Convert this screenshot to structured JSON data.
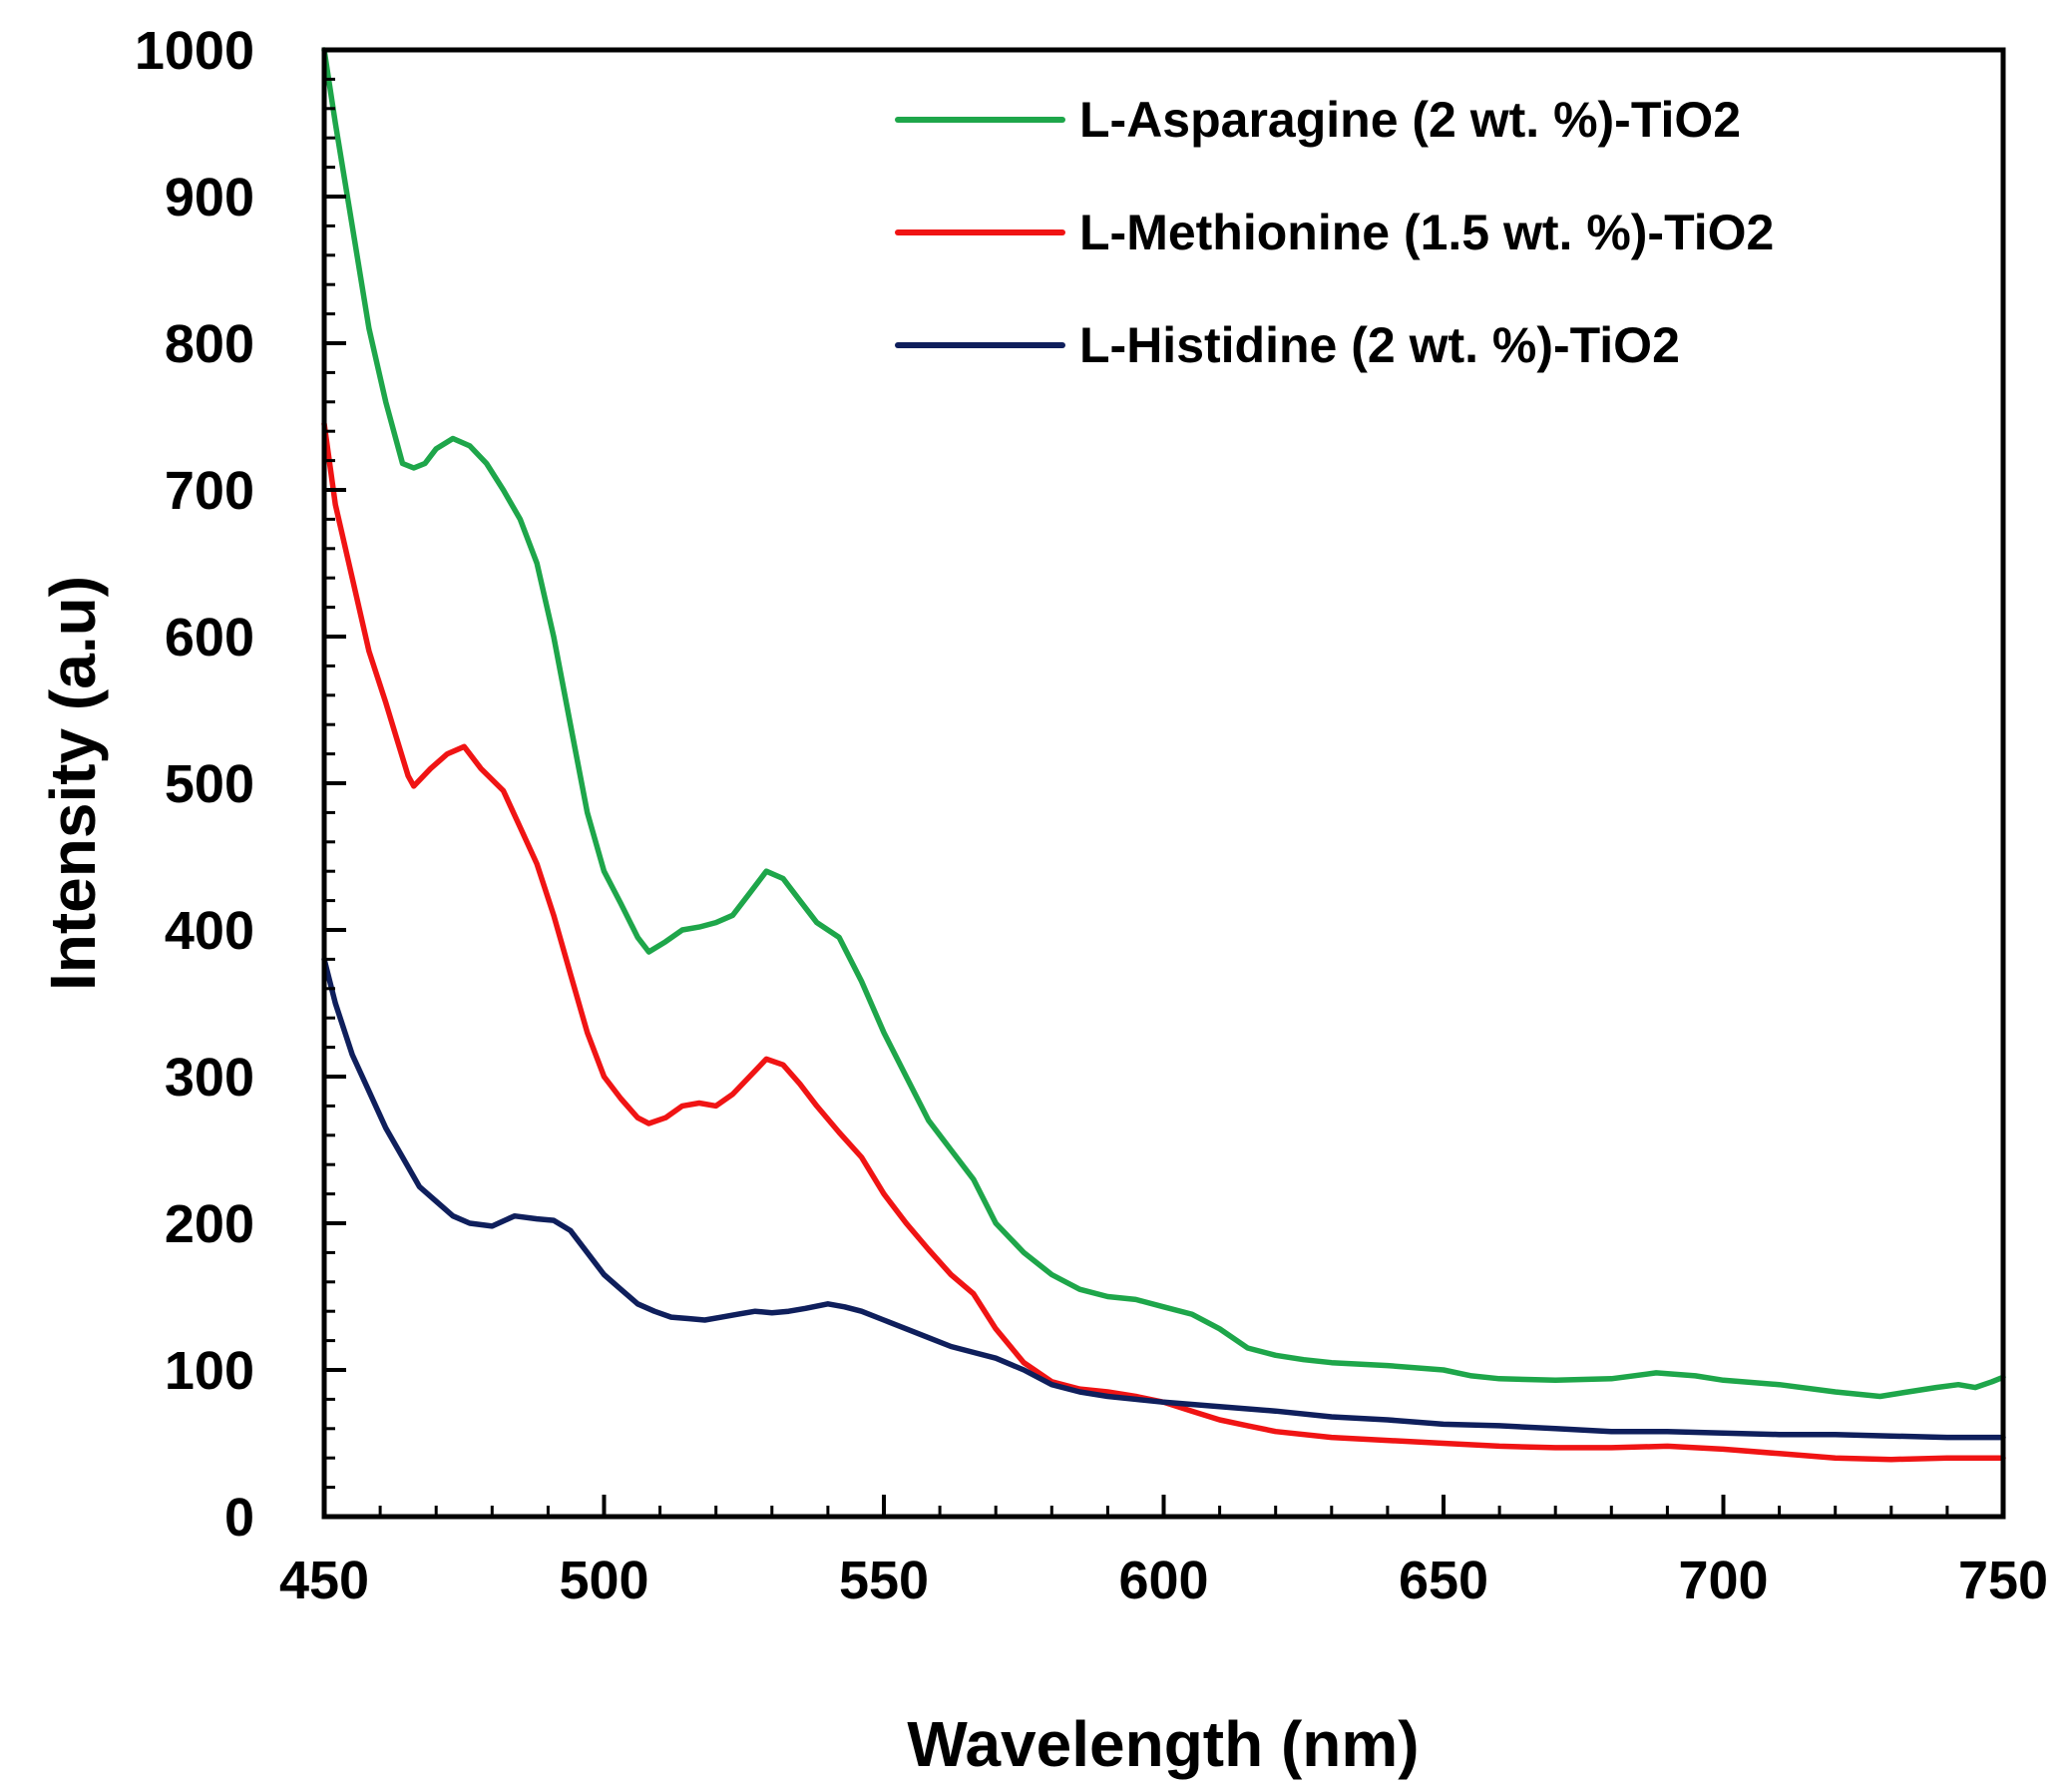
{
  "chart_data": {
    "type": "line",
    "title": "",
    "xlabel": "Wavelength (nm)",
    "ylabel": "Intensity (a.u)",
    "xlim": [
      450,
      750
    ],
    "ylim": [
      0,
      1000
    ],
    "x_ticks": [
      450,
      500,
      550,
      600,
      650,
      700,
      750
    ],
    "y_ticks": [
      0,
      100,
      200,
      300,
      400,
      500,
      600,
      700,
      800,
      900,
      1000
    ],
    "x_tick_labels": [
      "450",
      "500",
      "550",
      "600",
      "650",
      "700",
      "750"
    ],
    "y_tick_labels": [
      "0",
      "100",
      "200",
      "300",
      "400",
      "500",
      "600",
      "700",
      "800",
      "900",
      "1000"
    ],
    "x_minor_step": 10,
    "y_minor_step": 20,
    "grid": false,
    "legend_position": "top-right",
    "series": [
      {
        "name": "L-Asparagine (2 wt. %)-TiO2",
        "color": "#1ea64a",
        "points": [
          [
            450,
            1000
          ],
          [
            452,
            950
          ],
          [
            455,
            880
          ],
          [
            458,
            810
          ],
          [
            461,
            760
          ],
          [
            464,
            718
          ],
          [
            466,
            715
          ],
          [
            468,
            718
          ],
          [
            470,
            728
          ],
          [
            473,
            735
          ],
          [
            476,
            730
          ],
          [
            479,
            718
          ],
          [
            482,
            700
          ],
          [
            485,
            680
          ],
          [
            488,
            650
          ],
          [
            491,
            600
          ],
          [
            494,
            540
          ],
          [
            497,
            480
          ],
          [
            500,
            440
          ],
          [
            503,
            418
          ],
          [
            506,
            395
          ],
          [
            508,
            385
          ],
          [
            511,
            392
          ],
          [
            514,
            400
          ],
          [
            517,
            402
          ],
          [
            520,
            405
          ],
          [
            523,
            410
          ],
          [
            526,
            425
          ],
          [
            529,
            440
          ],
          [
            532,
            435
          ],
          [
            535,
            420
          ],
          [
            538,
            405
          ],
          [
            542,
            395
          ],
          [
            546,
            365
          ],
          [
            550,
            330
          ],
          [
            554,
            300
          ],
          [
            558,
            270
          ],
          [
            562,
            250
          ],
          [
            566,
            230
          ],
          [
            570,
            200
          ],
          [
            575,
            180
          ],
          [
            580,
            165
          ],
          [
            585,
            155
          ],
          [
            590,
            150
          ],
          [
            595,
            148
          ],
          [
            600,
            143
          ],
          [
            605,
            138
          ],
          [
            610,
            128
          ],
          [
            615,
            115
          ],
          [
            620,
            110
          ],
          [
            625,
            107
          ],
          [
            630,
            105
          ],
          [
            640,
            103
          ],
          [
            650,
            100
          ],
          [
            655,
            96
          ],
          [
            660,
            94
          ],
          [
            670,
            93
          ],
          [
            680,
            94
          ],
          [
            688,
            98
          ],
          [
            695,
            96
          ],
          [
            700,
            93
          ],
          [
            710,
            90
          ],
          [
            720,
            85
          ],
          [
            728,
            82
          ],
          [
            733,
            85
          ],
          [
            738,
            88
          ],
          [
            742,
            90
          ],
          [
            745,
            88
          ],
          [
            748,
            92
          ],
          [
            750,
            95
          ]
        ]
      },
      {
        "name": "L-Methionine (1.5 wt. %)-TiO2",
        "color": "#f01414",
        "points": [
          [
            450,
            745
          ],
          [
            452,
            690
          ],
          [
            455,
            640
          ],
          [
            458,
            590
          ],
          [
            461,
            555
          ],
          [
            463,
            530
          ],
          [
            465,
            505
          ],
          [
            466,
            498
          ],
          [
            469,
            510
          ],
          [
            472,
            520
          ],
          [
            475,
            525
          ],
          [
            478,
            510
          ],
          [
            482,
            495
          ],
          [
            485,
            470
          ],
          [
            488,
            445
          ],
          [
            491,
            410
          ],
          [
            494,
            370
          ],
          [
            497,
            330
          ],
          [
            500,
            300
          ],
          [
            503,
            285
          ],
          [
            506,
            272
          ],
          [
            508,
            268
          ],
          [
            511,
            272
          ],
          [
            514,
            280
          ],
          [
            517,
            282
          ],
          [
            520,
            280
          ],
          [
            523,
            288
          ],
          [
            526,
            300
          ],
          [
            529,
            312
          ],
          [
            532,
            308
          ],
          [
            535,
            295
          ],
          [
            538,
            280
          ],
          [
            542,
            262
          ],
          [
            546,
            245
          ],
          [
            550,
            220
          ],
          [
            554,
            200
          ],
          [
            558,
            182
          ],
          [
            562,
            165
          ],
          [
            566,
            152
          ],
          [
            570,
            128
          ],
          [
            575,
            105
          ],
          [
            580,
            92
          ],
          [
            585,
            87
          ],
          [
            590,
            85
          ],
          [
            595,
            82
          ],
          [
            600,
            78
          ],
          [
            605,
            72
          ],
          [
            610,
            66
          ],
          [
            615,
            62
          ],
          [
            620,
            58
          ],
          [
            630,
            54
          ],
          [
            640,
            52
          ],
          [
            650,
            50
          ],
          [
            660,
            48
          ],
          [
            670,
            47
          ],
          [
            680,
            47
          ],
          [
            690,
            48
          ],
          [
            700,
            46
          ],
          [
            710,
            43
          ],
          [
            720,
            40
          ],
          [
            730,
            39
          ],
          [
            740,
            40
          ],
          [
            750,
            40
          ]
        ]
      },
      {
        "name": "L-Histidine (2 wt. %)-TiO2",
        "color": "#0f1f5c",
        "points": [
          [
            450,
            380
          ],
          [
            452,
            350
          ],
          [
            455,
            315
          ],
          [
            458,
            290
          ],
          [
            461,
            265
          ],
          [
            464,
            245
          ],
          [
            467,
            225
          ],
          [
            470,
            215
          ],
          [
            473,
            205
          ],
          [
            476,
            200
          ],
          [
            480,
            198
          ],
          [
            484,
            205
          ],
          [
            488,
            203
          ],
          [
            491,
            202
          ],
          [
            494,
            195
          ],
          [
            497,
            180
          ],
          [
            500,
            165
          ],
          [
            503,
            155
          ],
          [
            506,
            145
          ],
          [
            509,
            140
          ],
          [
            512,
            136
          ],
          [
            515,
            135
          ],
          [
            518,
            134
          ],
          [
            521,
            136
          ],
          [
            524,
            138
          ],
          [
            527,
            140
          ],
          [
            530,
            139
          ],
          [
            533,
            140
          ],
          [
            536,
            142
          ],
          [
            540,
            145
          ],
          [
            543,
            143
          ],
          [
            546,
            140
          ],
          [
            550,
            134
          ],
          [
            554,
            128
          ],
          [
            558,
            122
          ],
          [
            562,
            116
          ],
          [
            566,
            112
          ],
          [
            570,
            108
          ],
          [
            575,
            100
          ],
          [
            580,
            90
          ],
          [
            585,
            85
          ],
          [
            590,
            82
          ],
          [
            595,
            80
          ],
          [
            600,
            78
          ],
          [
            610,
            75
          ],
          [
            620,
            72
          ],
          [
            630,
            68
          ],
          [
            640,
            66
          ],
          [
            650,
            63
          ],
          [
            660,
            62
          ],
          [
            670,
            60
          ],
          [
            680,
            58
          ],
          [
            690,
            58
          ],
          [
            700,
            57
          ],
          [
            710,
            56
          ],
          [
            720,
            56
          ],
          [
            730,
            55
          ],
          [
            740,
            54
          ],
          [
            750,
            54
          ]
        ]
      }
    ]
  }
}
